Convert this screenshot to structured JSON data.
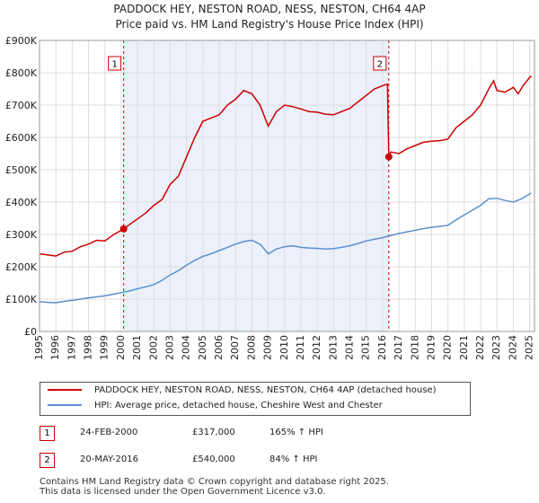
{
  "chart_data": {
    "type": "line",
    "title": "PADDOCK HEY, NESTON ROAD, NESS, NESTON, CH64 4AP",
    "subtitle": "Price paid vs. HM Land Registry's House Price Index (HPI)",
    "xlim": [
      1995,
      2025.3
    ],
    "ylim": [
      0,
      900000
    ],
    "x_ticks": [
      "1995",
      "1996",
      "1997",
      "1998",
      "1999",
      "2000",
      "2001",
      "2002",
      "2003",
      "2004",
      "2005",
      "2006",
      "2007",
      "2008",
      "2009",
      "2010",
      "2011",
      "2012",
      "2013",
      "2014",
      "2015",
      "2016",
      "2017",
      "2018",
      "2019",
      "2020",
      "2021",
      "2022",
      "2023",
      "2024",
      "2025"
    ],
    "y_ticks": [
      {
        "value": 0,
        "label": "£0"
      },
      {
        "value": 100000,
        "label": "£100K"
      },
      {
        "value": 200000,
        "label": "£200K"
      },
      {
        "value": 300000,
        "label": "£300K"
      },
      {
        "value": 400000,
        "label": "£400K"
      },
      {
        "value": 500000,
        "label": "£500K"
      },
      {
        "value": 600000,
        "label": "£600K"
      },
      {
        "value": 700000,
        "label": "£700K"
      },
      {
        "value": 800000,
        "label": "£800K"
      },
      {
        "value": 900000,
        "label": "£900K"
      }
    ],
    "shaded_region": [
      2000.15,
      2016.38
    ],
    "series": [
      {
        "name": "PADDOCK HEY, NESTON ROAD, NESS, NESTON, CH64 4AP (detached house)",
        "color": "#cc0000",
        "points": [
          [
            1995,
            240000
          ],
          [
            1995.5,
            237000
          ],
          [
            1996,
            233000
          ],
          [
            1996.5,
            245000
          ],
          [
            1997,
            248000
          ],
          [
            1997.5,
            262000
          ],
          [
            1998,
            270000
          ],
          [
            1998.5,
            282000
          ],
          [
            1999,
            280000
          ],
          [
            1999.5,
            298000
          ],
          [
            2000.15,
            317000
          ],
          [
            2000.5,
            330000
          ],
          [
            2001,
            348000
          ],
          [
            2001.5,
            366000
          ],
          [
            2002,
            390000
          ],
          [
            2002.5,
            408000
          ],
          [
            2003,
            455000
          ],
          [
            2003.5,
            480000
          ],
          [
            2004,
            540000
          ],
          [
            2004.5,
            600000
          ],
          [
            2005,
            650000
          ],
          [
            2005.5,
            660000
          ],
          [
            2006,
            670000
          ],
          [
            2006.5,
            700000
          ],
          [
            2007,
            718000
          ],
          [
            2007.5,
            745000
          ],
          [
            2008,
            735000
          ],
          [
            2008.5,
            700000
          ],
          [
            2008.8,
            660000
          ],
          [
            2009,
            635000
          ],
          [
            2009.5,
            680000
          ],
          [
            2010,
            700000
          ],
          [
            2010.5,
            695000
          ],
          [
            2011,
            688000
          ],
          [
            2011.5,
            680000
          ],
          [
            2012,
            678000
          ],
          [
            2012.5,
            672000
          ],
          [
            2013,
            670000
          ],
          [
            2013.5,
            680000
          ],
          [
            2014,
            690000
          ],
          [
            2014.5,
            710000
          ],
          [
            2015,
            730000
          ],
          [
            2015.5,
            750000
          ],
          [
            2016,
            760000
          ],
          [
            2016.3,
            765000
          ],
          [
            2016.38,
            540000
          ],
          [
            2016.5,
            555000
          ],
          [
            2017,
            550000
          ],
          [
            2017.5,
            565000
          ],
          [
            2018,
            575000
          ],
          [
            2018.5,
            585000
          ],
          [
            2019,
            588000
          ],
          [
            2019.5,
            590000
          ],
          [
            2020,
            595000
          ],
          [
            2020.5,
            630000
          ],
          [
            2021,
            650000
          ],
          [
            2021.5,
            670000
          ],
          [
            2022,
            700000
          ],
          [
            2022.5,
            750000
          ],
          [
            2022.8,
            775000
          ],
          [
            2023,
            745000
          ],
          [
            2023.5,
            740000
          ],
          [
            2024,
            755000
          ],
          [
            2024.3,
            735000
          ],
          [
            2024.6,
            760000
          ],
          [
            2025,
            785000
          ],
          [
            2025.1,
            790000
          ]
        ]
      },
      {
        "name": "HPI: Average price, detached house, Cheshire West and Chester",
        "color": "#5b8fcf",
        "points": [
          [
            1995,
            92000
          ],
          [
            1995.5,
            90000
          ],
          [
            1996,
            89000
          ],
          [
            1996.5,
            93000
          ],
          [
            1997,
            96000
          ],
          [
            1997.5,
            100000
          ],
          [
            1998,
            104000
          ],
          [
            1998.5,
            107000
          ],
          [
            1999,
            110000
          ],
          [
            1999.5,
            115000
          ],
          [
            2000,
            120000
          ],
          [
            2000.5,
            125000
          ],
          [
            2001,
            132000
          ],
          [
            2001.5,
            138000
          ],
          [
            2002,
            145000
          ],
          [
            2002.5,
            158000
          ],
          [
            2003,
            175000
          ],
          [
            2003.5,
            188000
          ],
          [
            2004,
            205000
          ],
          [
            2004.5,
            220000
          ],
          [
            2005,
            232000
          ],
          [
            2005.5,
            240000
          ],
          [
            2006,
            250000
          ],
          [
            2006.5,
            260000
          ],
          [
            2007,
            270000
          ],
          [
            2007.5,
            278000
          ],
          [
            2008,
            282000
          ],
          [
            2008.5,
            270000
          ],
          [
            2009,
            240000
          ],
          [
            2009.5,
            255000
          ],
          [
            2010,
            262000
          ],
          [
            2010.5,
            265000
          ],
          [
            2011,
            260000
          ],
          [
            2011.5,
            258000
          ],
          [
            2012,
            257000
          ],
          [
            2012.5,
            255000
          ],
          [
            2013,
            256000
          ],
          [
            2013.5,
            260000
          ],
          [
            2014,
            265000
          ],
          [
            2014.5,
            272000
          ],
          [
            2015,
            280000
          ],
          [
            2015.5,
            285000
          ],
          [
            2016,
            290000
          ],
          [
            2016.5,
            297000
          ],
          [
            2017,
            303000
          ],
          [
            2017.5,
            308000
          ],
          [
            2018,
            313000
          ],
          [
            2018.5,
            318000
          ],
          [
            2019,
            322000
          ],
          [
            2019.5,
            325000
          ],
          [
            2020,
            328000
          ],
          [
            2020.5,
            345000
          ],
          [
            2021,
            360000
          ],
          [
            2021.5,
            375000
          ],
          [
            2022,
            390000
          ],
          [
            2022.5,
            410000
          ],
          [
            2023,
            412000
          ],
          [
            2023.5,
            405000
          ],
          [
            2024,
            400000
          ],
          [
            2024.5,
            410000
          ],
          [
            2025,
            425000
          ],
          [
            2025.1,
            428000
          ]
        ]
      }
    ],
    "markers": [
      {
        "label": "1",
        "x": 2000.15,
        "y": 317000,
        "color": "#cc0000"
      },
      {
        "label": "2",
        "x": 2016.38,
        "y": 540000,
        "color": "#cc0000"
      }
    ]
  },
  "legend": {
    "items": [
      {
        "label": "PADDOCK HEY, NESTON ROAD, NESS, NESTON, CH64 4AP (detached house)",
        "color": "#cc0000"
      },
      {
        "label": "HPI: Average price, detached house, Cheshire West and Chester",
        "color": "#5b8fcf"
      }
    ]
  },
  "transactions": [
    {
      "num": "1",
      "date": "24-FEB-2000",
      "price": "£317,000",
      "hpi": "165% ↑ HPI"
    },
    {
      "num": "2",
      "date": "20-MAY-2016",
      "price": "£540,000",
      "hpi": "84% ↑ HPI"
    }
  ],
  "footer": {
    "line1": "Contains HM Land Registry data © Crown copyright and database right 2025.",
    "line2": "This data is licensed under the Open Government Licence v3.0."
  }
}
